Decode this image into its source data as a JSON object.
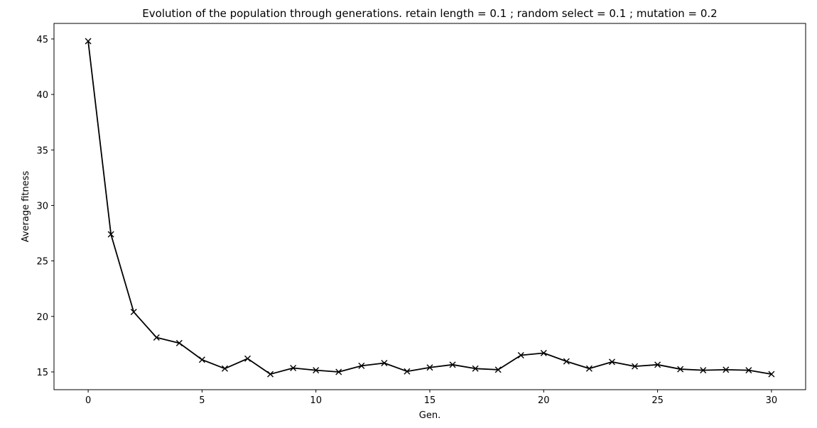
{
  "chart_data": {
    "type": "line",
    "title": "Evolution of the population through generations. retain length = 0.1 ; random select = 0.1 ; mutation = 0.2",
    "xlabel": "Gen.",
    "ylabel": "Average fitness",
    "xlim": [
      -1.5,
      31.5
    ],
    "ylim": [
      13.4,
      46.4
    ],
    "xticks": [
      0,
      5,
      10,
      15,
      20,
      25,
      30
    ],
    "yticks": [
      15,
      20,
      25,
      30,
      35,
      40,
      45
    ],
    "grid": false,
    "legend": false,
    "series": [
      {
        "color": "#000000",
        "marker": "x",
        "x": [
          0,
          1,
          2,
          3,
          4,
          5,
          6,
          7,
          8,
          9,
          10,
          11,
          12,
          13,
          14,
          15,
          16,
          17,
          18,
          19,
          20,
          21,
          22,
          23,
          24,
          25,
          26,
          27,
          28,
          29,
          30
        ],
        "y": [
          44.8,
          27.4,
          20.4,
          18.1,
          17.6,
          16.1,
          15.3,
          16.2,
          14.8,
          15.35,
          15.15,
          15.0,
          15.55,
          15.8,
          15.05,
          15.4,
          15.65,
          15.3,
          15.2,
          16.5,
          16.7,
          15.95,
          15.3,
          15.9,
          15.5,
          15.65,
          15.25,
          15.15,
          15.2,
          15.15,
          14.8
        ]
      }
    ]
  }
}
